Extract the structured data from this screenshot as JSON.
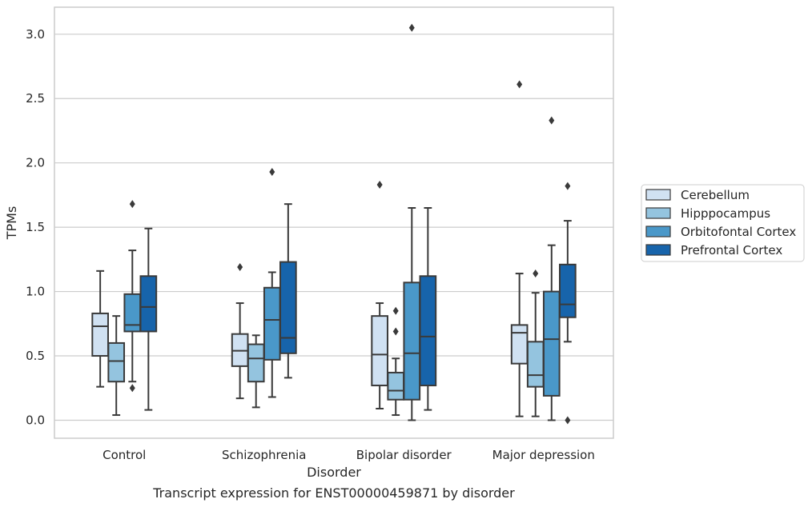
{
  "chart_data": {
    "type": "box",
    "title": "",
    "caption": "Transcript expression for ENST00000459871 by disorder",
    "xlabel": "Disorder",
    "ylabel": "TPMs",
    "ylim": [
      -0.14,
      3.21
    ],
    "yticks": [
      0.0,
      0.5,
      1.0,
      1.5,
      2.0,
      2.5,
      3.0
    ],
    "ytick_labels": [
      "0.0",
      "0.5",
      "1.0",
      "1.5",
      "2.0",
      "2.5",
      "3.0"
    ],
    "grid": "horizontal",
    "legend_position": "right",
    "categories": [
      "Control",
      "Schizophrenia",
      "Bipolar disorder",
      "Major depression"
    ],
    "series": [
      {
        "name": "Cerebellum",
        "color": "#d0e1f2",
        "boxes": [
          {
            "whislo": 0.26,
            "q1": 0.5,
            "med": 0.73,
            "q3": 0.83,
            "whishi": 1.16,
            "fliers": []
          },
          {
            "whislo": 0.17,
            "q1": 0.42,
            "med": 0.54,
            "q3": 0.67,
            "whishi": 0.91,
            "fliers": [
              1.19
            ]
          },
          {
            "whislo": 0.09,
            "q1": 0.27,
            "med": 0.51,
            "q3": 0.81,
            "whishi": 0.91,
            "fliers": [
              1.83
            ]
          },
          {
            "whislo": 0.03,
            "q1": 0.44,
            "med": 0.68,
            "q3": 0.74,
            "whishi": 1.14,
            "fliers": [
              2.61
            ]
          }
        ]
      },
      {
        "name": "Hipppocampus",
        "color": "#94c4df",
        "boxes": [
          {
            "whislo": 0.04,
            "q1": 0.3,
            "med": 0.46,
            "q3": 0.6,
            "whishi": 0.81,
            "fliers": []
          },
          {
            "whislo": 0.1,
            "q1": 0.3,
            "med": 0.48,
            "q3": 0.59,
            "whishi": 0.66,
            "fliers": []
          },
          {
            "whislo": 0.04,
            "q1": 0.16,
            "med": 0.23,
            "q3": 0.37,
            "whishi": 0.48,
            "fliers": [
              0.69,
              0.85
            ]
          },
          {
            "whislo": 0.03,
            "q1": 0.26,
            "med": 0.35,
            "q3": 0.61,
            "whishi": 0.99,
            "fliers": [
              1.14
            ]
          }
        ]
      },
      {
        "name": "Orbitofontal Cortex",
        "color": "#4a98c9",
        "boxes": [
          {
            "whislo": 0.3,
            "q1": 0.69,
            "med": 0.74,
            "q3": 0.98,
            "whishi": 1.32,
            "fliers": [
              0.25,
              1.68
            ]
          },
          {
            "whislo": 0.18,
            "q1": 0.47,
            "med": 0.78,
            "q3": 1.03,
            "whishi": 1.15,
            "fliers": [
              1.93
            ]
          },
          {
            "whislo": 0.0,
            "q1": 0.16,
            "med": 0.52,
            "q3": 1.07,
            "whishi": 1.65,
            "fliers": [
              3.05
            ]
          },
          {
            "whislo": 0.0,
            "q1": 0.19,
            "med": 0.63,
            "q3": 1.0,
            "whishi": 1.36,
            "fliers": [
              2.33
            ]
          }
        ]
      },
      {
        "name": "Prefrontal Cortex",
        "color": "#1764ab",
        "boxes": [
          {
            "whislo": 0.08,
            "q1": 0.69,
            "med": 0.88,
            "q3": 1.12,
            "whishi": 1.49,
            "fliers": []
          },
          {
            "whislo": 0.33,
            "q1": 0.52,
            "med": 0.64,
            "q3": 1.23,
            "whishi": 1.68,
            "fliers": []
          },
          {
            "whislo": 0.08,
            "q1": 0.27,
            "med": 0.65,
            "q3": 1.12,
            "whishi": 1.65,
            "fliers": []
          },
          {
            "whislo": 0.61,
            "q1": 0.8,
            "med": 0.9,
            "q3": 1.21,
            "whishi": 1.55,
            "fliers": [
              0.0,
              1.82
            ]
          }
        ]
      }
    ]
  },
  "style": {
    "line_color": "#3a3a3a",
    "grid_color": "#cccccc",
    "frame_color": "#cccccc"
  }
}
